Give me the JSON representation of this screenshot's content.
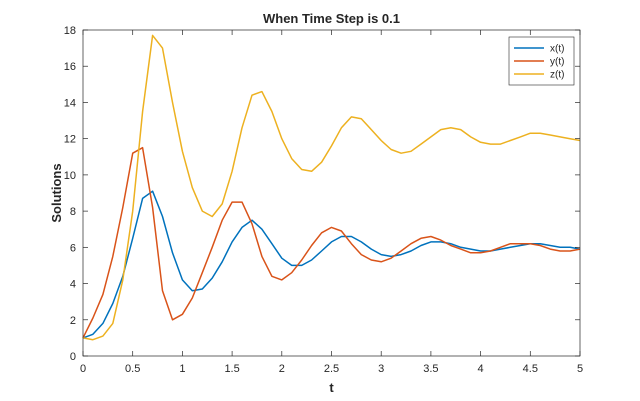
{
  "chart_data": {
    "type": "line",
    "title": "When Time Step is 0.1",
    "xlabel": "t",
    "ylabel": "Solutions",
    "xlim": [
      0,
      5
    ],
    "ylim": [
      0,
      18
    ],
    "xticks": [
      0,
      0.5,
      1,
      1.5,
      2,
      2.5,
      3,
      3.5,
      4,
      4.5,
      5
    ],
    "xtick_labels": [
      "0",
      "0.5",
      "1",
      "1.5",
      "2",
      "2.5",
      "3",
      "3.5",
      "4",
      "4.5",
      "5"
    ],
    "yticks": [
      0,
      2,
      4,
      6,
      8,
      10,
      12,
      14,
      16,
      18
    ],
    "ytick_labels": [
      "0",
      "2",
      "4",
      "6",
      "8",
      "10",
      "12",
      "14",
      "16",
      "18"
    ],
    "grid": false,
    "legend_position": "top-right",
    "x": [
      0,
      0.1,
      0.2,
      0.3,
      0.4,
      0.5,
      0.6,
      0.7,
      0.8,
      0.9,
      1.0,
      1.1,
      1.2,
      1.3,
      1.4,
      1.5,
      1.6,
      1.7,
      1.8,
      1.9,
      2.0,
      2.1,
      2.2,
      2.3,
      2.4,
      2.5,
      2.6,
      2.7,
      2.8,
      2.9,
      3.0,
      3.1,
      3.2,
      3.3,
      3.4,
      3.5,
      3.6,
      3.7,
      3.8,
      3.9,
      4.0,
      4.1,
      4.2,
      4.3,
      4.4,
      4.5,
      4.6,
      4.7,
      4.8,
      4.9,
      5.0
    ],
    "series": [
      {
        "name": "x(t)",
        "color": "#0072BD",
        "values": [
          1.0,
          1.2,
          1.8,
          2.9,
          4.4,
          6.5,
          8.7,
          9.1,
          7.7,
          5.7,
          4.2,
          3.6,
          3.7,
          4.3,
          5.2,
          6.3,
          7.1,
          7.5,
          7.0,
          6.2,
          5.4,
          5.0,
          5.0,
          5.3,
          5.8,
          6.3,
          6.6,
          6.6,
          6.3,
          5.9,
          5.6,
          5.5,
          5.6,
          5.8,
          6.1,
          6.3,
          6.3,
          6.2,
          6.0,
          5.9,
          5.8,
          5.8,
          5.9,
          6.0,
          6.1,
          6.2,
          6.2,
          6.1,
          6.0,
          6.0,
          5.9
        ]
      },
      {
        "name": "y(t)",
        "color": "#D95319",
        "values": [
          1.0,
          2.1,
          3.4,
          5.5,
          8.2,
          11.2,
          11.5,
          8.2,
          3.6,
          2.0,
          2.3,
          3.2,
          4.6,
          6.0,
          7.5,
          8.5,
          8.5,
          7.3,
          5.5,
          4.4,
          4.2,
          4.6,
          5.3,
          6.1,
          6.8,
          7.1,
          6.9,
          6.2,
          5.6,
          5.3,
          5.2,
          5.4,
          5.8,
          6.2,
          6.5,
          6.6,
          6.4,
          6.1,
          5.9,
          5.7,
          5.7,
          5.8,
          6.0,
          6.2,
          6.2,
          6.2,
          6.1,
          5.9,
          5.8,
          5.8,
          5.9
        ]
      },
      {
        "name": "z(t)",
        "color": "#EDB120",
        "values": [
          1.0,
          0.9,
          1.1,
          1.8,
          4.2,
          8.0,
          13.5,
          17.7,
          17.0,
          14.0,
          11.3,
          9.3,
          8.0,
          7.7,
          8.4,
          10.2,
          12.6,
          14.4,
          14.6,
          13.5,
          12.0,
          10.9,
          10.3,
          10.2,
          10.7,
          11.6,
          12.6,
          13.2,
          13.1,
          12.5,
          11.9,
          11.4,
          11.2,
          11.3,
          11.7,
          12.1,
          12.5,
          12.6,
          12.5,
          12.1,
          11.8,
          11.7,
          11.7,
          11.9,
          12.1,
          12.3,
          12.3,
          12.2,
          12.1,
          12.0,
          11.9
        ]
      }
    ]
  }
}
